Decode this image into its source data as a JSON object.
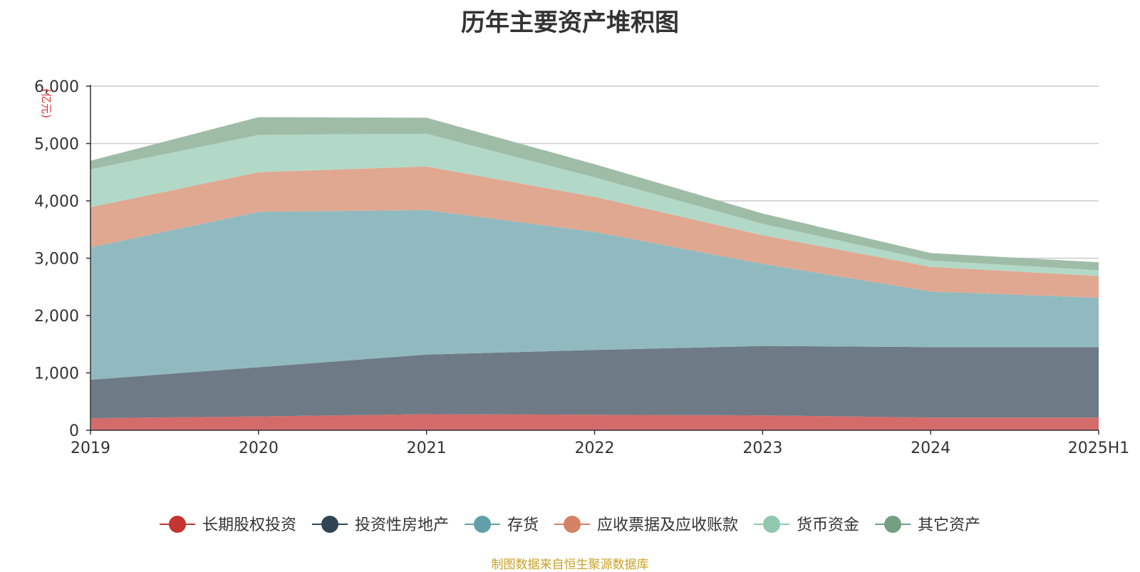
{
  "title": "历年主要资产堆积图",
  "source_note": "制图数据来自恒生聚源数据库",
  "chart_data": {
    "type": "area",
    "stacked": true,
    "title": "历年主要资产堆积图",
    "unit": "(亿元)",
    "categories": [
      "2019",
      "2020",
      "2021",
      "2022",
      "2023",
      "2024",
      "2025H1"
    ],
    "ylim": [
      0,
      6000
    ],
    "yticks": [
      "0",
      "1,000",
      "2,000",
      "3,000",
      "4,000",
      "5,000",
      "6,000"
    ],
    "grid": true,
    "legend_position": "bottom",
    "series": [
      {
        "name": "长期股权投资",
        "color": "#c23531",
        "fill": "#d46b6b",
        "values": [
          210,
          240,
          280,
          270,
          260,
          220,
          220
        ]
      },
      {
        "name": "投资性房地产",
        "color": "#2f4554",
        "fill": "#6e7b86",
        "values": [
          670,
          860,
          1040,
          1130,
          1210,
          1230,
          1230
        ]
      },
      {
        "name": "存货",
        "color": "#61a0a8",
        "fill": "#91bac0",
        "values": [
          2310,
          2710,
          2520,
          2060,
          1430,
          970,
          860
        ]
      },
      {
        "name": "应收票据及应收账款",
        "color": "#d48265",
        "fill": "#e0a891",
        "values": [
          700,
          690,
          760,
          610,
          500,
          430,
          380
        ]
      },
      {
        "name": "货币资金",
        "color": "#91c7ae",
        "fill": "#b2d9c7",
        "values": [
          660,
          650,
          570,
          340,
          200,
          110,
          100
        ]
      },
      {
        "name": "其它资产",
        "color": "#749f83",
        "fill": "#9fbca7",
        "values": [
          150,
          310,
          280,
          230,
          180,
          130,
          140
        ]
      }
    ]
  }
}
